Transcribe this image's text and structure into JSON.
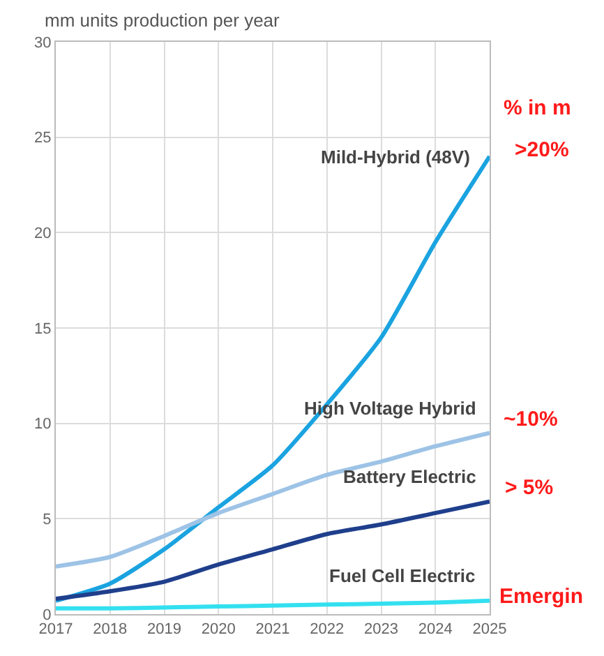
{
  "chart_data": {
    "type": "line",
    "ylabel": "mm units production per year",
    "x": [
      2017,
      2018,
      2019,
      2020,
      2021,
      2022,
      2023,
      2024,
      2025
    ],
    "series": [
      {
        "name": "Mild-Hybrid (48V)",
        "color": "#1aa3e0",
        "values": [
          0.7,
          1.6,
          3.4,
          5.6,
          7.8,
          11,
          14.5,
          19.5,
          24
        ]
      },
      {
        "name": "High Voltage Hybrid",
        "color": "#9dc3e6",
        "values": [
          2.5,
          3.0,
          4.1,
          5.3,
          6.3,
          7.3,
          8.0,
          8.8,
          9.5
        ]
      },
      {
        "name": "Battery Electric",
        "color": "#1f3f8c",
        "values": [
          0.8,
          1.2,
          1.7,
          2.6,
          3.4,
          4.2,
          4.7,
          5.3,
          5.9
        ]
      },
      {
        "name": "Fuel Cell Electric",
        "color": "#33e0f0",
        "values": [
          0.3,
          0.3,
          0.35,
          0.4,
          0.45,
          0.5,
          0.55,
          0.6,
          0.7
        ]
      }
    ],
    "annotations": [
      "% in m",
      ">20%",
      "~10%",
      "> 5%",
      "Emergin"
    ],
    "xlim": [
      2017,
      2025
    ],
    "xticks": [
      2017,
      2018,
      2019,
      2020,
      2021,
      2022,
      2023,
      2024,
      2025
    ],
    "ylim": [
      0,
      30
    ],
    "yticks": [
      0,
      5,
      10,
      15,
      20,
      25,
      30
    ],
    "grid": true,
    "legend": false,
    "marker": "none",
    "line_style": "solid"
  }
}
